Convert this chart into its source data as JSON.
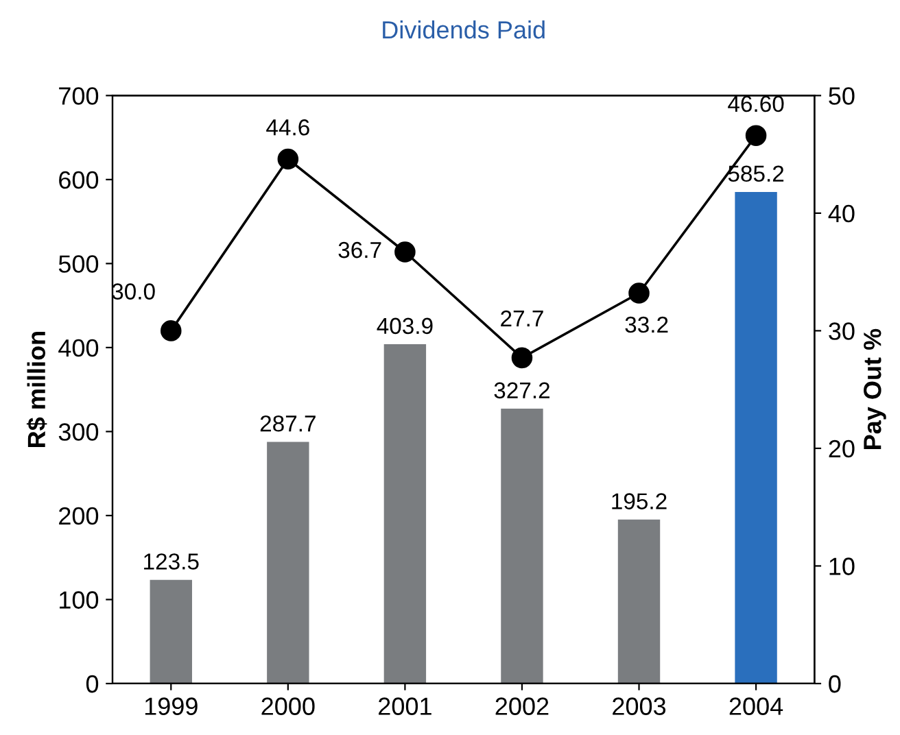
{
  "chart_data": {
    "type": "bar",
    "title": "Dividends Paid",
    "categories": [
      "1999",
      "2000",
      "2001",
      "2002",
      "2003",
      "2004"
    ],
    "ylabel": "R$ million",
    "y2label": "Pay Out %",
    "ylim": [
      0,
      700
    ],
    "yticks": [
      0,
      100,
      200,
      300,
      400,
      500,
      600,
      700
    ],
    "y2lim": [
      0,
      50
    ],
    "y2ticks": [
      0,
      10,
      20,
      30,
      40,
      50
    ],
    "grid": false,
    "legend": false,
    "series": [
      {
        "colors": [
          "#7a7d80",
          "#7a7d80",
          "#7a7d80",
          "#7a7d80",
          "#7a7d80",
          "#2a6fbd"
        ],
        "values": [
          123.5,
          287.7,
          403.9,
          327.2,
          195.2,
          585.2
        ],
        "value_labels": [
          "123.5",
          "287.7",
          "403.9",
          "327.2",
          "195.2",
          "585.2"
        ]
      },
      {
        "type": "line",
        "axis": "y2",
        "color": "#000000",
        "marker": "circle",
        "values": [
          30.0,
          44.6,
          36.7,
          27.7,
          33.2,
          46.6
        ],
        "value_labels": [
          "30.0",
          "44.6",
          "36.7",
          "27.7",
          "33.2",
          "46.60"
        ]
      }
    ]
  }
}
